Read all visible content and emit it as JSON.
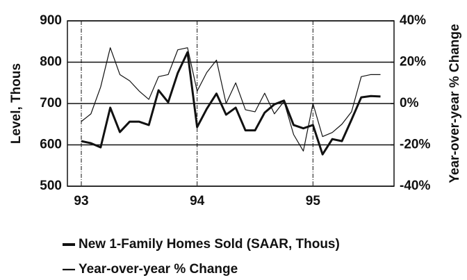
{
  "chart_data": {
    "type": "line",
    "y_label": "Level, Thous",
    "y2_label": "Year-over-year % Change",
    "x": [
      93,
      93.083,
      93.167,
      93.25,
      93.333,
      93.417,
      93.5,
      93.583,
      93.667,
      93.75,
      93.833,
      93.917,
      94,
      94.083,
      94.167,
      94.25,
      94.333,
      94.417,
      94.5,
      94.583,
      94.667,
      94.75,
      94.833,
      94.917,
      95,
      95.083,
      95.167,
      95.25,
      95.333,
      95.417,
      95.5,
      95.583
    ],
    "xlim": [
      92.88,
      95.7
    ],
    "xticks": [
      93,
      94,
      95
    ],
    "ylim": [
      500,
      900
    ],
    "yticks": [
      500,
      600,
      700,
      800,
      900
    ],
    "y2lim": [
      -40,
      40
    ],
    "y2ticks": [
      {
        "value": -40,
        "label": "-40%"
      },
      {
        "value": -20,
        "label": "-20%"
      },
      {
        "value": 0,
        "label": "0%"
      },
      {
        "value": 20,
        "label": "20%"
      },
      {
        "value": 40,
        "label": "40%"
      }
    ],
    "grid": true,
    "series": [
      {
        "name": "New 1-Family Homes Sold (SAAR, Thous)",
        "color": "#111111",
        "width": 3,
        "values": [
          609,
          604,
          594,
          690,
          631,
          656,
          656,
          648,
          732,
          703,
          774,
          824,
          643,
          687,
          724,
          673,
          690,
          635,
          635,
          678,
          698,
          707,
          648,
          640,
          648,
          577,
          614,
          609,
          661,
          715,
          718,
          717
        ]
      },
      {
        "name": "Year-over-year % Change",
        "color": "#111111",
        "width": 1.2,
        "axis": "y2",
        "values": [
          -8.7,
          -5,
          8,
          27,
          14,
          11,
          6,
          2,
          13,
          14,
          26,
          27,
          6,
          15,
          21,
          0,
          10,
          -3,
          -4,
          5,
          -5,
          1,
          -15,
          -23,
          0,
          -16,
          -14,
          -10,
          -4,
          13,
          14,
          14
        ]
      }
    ]
  }
}
